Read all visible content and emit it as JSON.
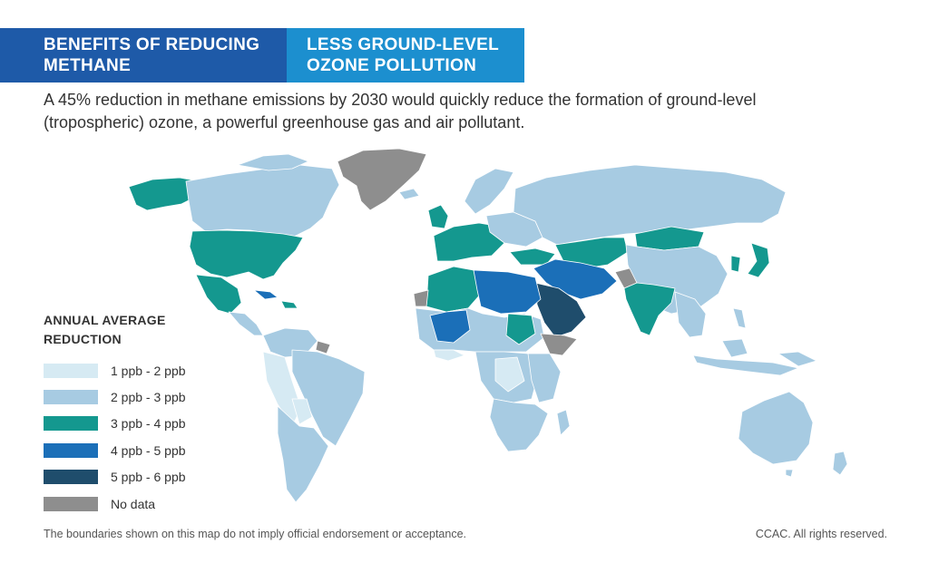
{
  "header": {
    "left_title": "BENEFITS OF REDUCING METHANE",
    "right_title": "LESS GROUND-LEVEL OZONE POLLUTION",
    "left_color": "#1e5aa8",
    "right_color": "#1c8fcf"
  },
  "subtitle": "A 45% reduction in methane emissions by 2030 would quickly reduce the formation of ground-level (tropospheric) ozone, a powerful greenhouse gas and air pollutant.",
  "legend": {
    "title": "ANNUAL AVERAGE REDUCTION",
    "items": [
      {
        "label": "1 ppb - 2 ppb",
        "color": "#d6eaf3"
      },
      {
        "label": "2 ppb - 3 ppb",
        "color": "#a7cbe2"
      },
      {
        "label": "3 ppb - 4 ppb",
        "color": "#14988f"
      },
      {
        "label": "4 ppb - 5 ppb",
        "color": "#1b6fb8"
      },
      {
        "label": "5 ppb - 6 ppb",
        "color": "#1f4d6c"
      },
      {
        "label": "No data",
        "color": "#8e8e8e"
      }
    ]
  },
  "footer": {
    "disclaimer": "The boundaries shown on this map do not imply official endorsement or acceptance.",
    "rights": "CCAC. All rights reserved."
  }
}
